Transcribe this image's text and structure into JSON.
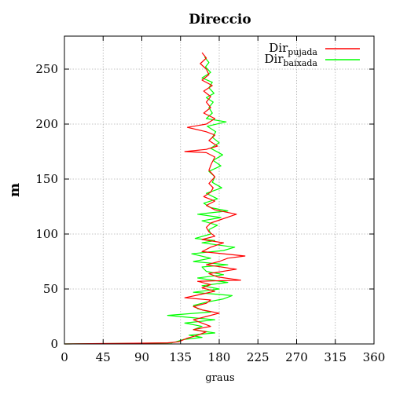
{
  "chart_data": {
    "type": "line",
    "title": "Direccio",
    "xlabel": "graus",
    "ylabel": "m",
    "xlim": [
      0,
      360
    ],
    "ylim": [
      0,
      280
    ],
    "x_ticks": [
      0,
      45,
      90,
      135,
      180,
      225,
      270,
      315,
      360
    ],
    "y_ticks": [
      0,
      50,
      100,
      150,
      200,
      250
    ],
    "grid": true,
    "legend_position": "top-right",
    "series": [
      {
        "name": "Dir",
        "name_sub": "pujada",
        "color": "#ff0000",
        "points": [
          [
            0,
            0
          ],
          [
            60,
            0.5
          ],
          [
            120,
            1
          ],
          [
            133,
            2
          ],
          [
            142,
            5
          ],
          [
            155,
            8
          ],
          [
            165,
            11
          ],
          [
            150,
            13
          ],
          [
            170,
            16
          ],
          [
            160,
            19
          ],
          [
            150,
            22
          ],
          [
            165,
            25
          ],
          [
            180,
            28
          ],
          [
            160,
            31
          ],
          [
            150,
            34
          ],
          [
            165,
            37
          ],
          [
            170,
            40
          ],
          [
            140,
            42
          ],
          [
            158,
            45
          ],
          [
            175,
            48
          ],
          [
            160,
            51
          ],
          [
            170,
            54
          ],
          [
            155,
            57
          ],
          [
            205,
            58
          ],
          [
            178,
            61
          ],
          [
            168,
            64
          ],
          [
            200,
            68
          ],
          [
            165,
            72
          ],
          [
            180,
            75
          ],
          [
            190,
            78
          ],
          [
            210,
            80
          ],
          [
            160,
            84
          ],
          [
            170,
            88
          ],
          [
            185,
            92
          ],
          [
            160,
            95
          ],
          [
            175,
            98
          ],
          [
            168,
            102
          ],
          [
            165,
            106
          ],
          [
            170,
            110
          ],
          [
            200,
            118
          ],
          [
            175,
            122
          ],
          [
            165,
            126
          ],
          [
            175,
            130
          ],
          [
            162,
            134
          ],
          [
            170,
            138
          ],
          [
            173,
            142
          ],
          [
            168,
            146
          ],
          [
            175,
            152
          ],
          [
            168,
            158
          ],
          [
            171,
            164
          ],
          [
            175,
            170
          ],
          [
            165,
            174
          ],
          [
            140,
            175
          ],
          [
            165,
            177
          ],
          [
            178,
            180
          ],
          [
            168,
            185
          ],
          [
            175,
            190
          ],
          [
            165,
            193
          ],
          [
            143,
            197
          ],
          [
            165,
            200
          ],
          [
            175,
            205
          ],
          [
            162,
            210
          ],
          [
            170,
            215
          ],
          [
            165,
            220
          ],
          [
            170,
            225
          ],
          [
            162,
            230
          ],
          [
            172,
            235
          ],
          [
            160,
            240
          ],
          [
            168,
            245
          ],
          [
            165,
            250
          ],
          [
            158,
            255
          ],
          [
            165,
            260
          ],
          [
            160,
            265
          ]
        ]
      },
      {
        "name": "Dir",
        "name_sub": "baixada",
        "color": "#00ff00",
        "points": [
          [
            0,
            0
          ],
          [
            70,
            0.5
          ],
          [
            125,
            1
          ],
          [
            130,
            2
          ],
          [
            138,
            4
          ],
          [
            160,
            6
          ],
          [
            145,
            8
          ],
          [
            175,
            10
          ],
          [
            150,
            13
          ],
          [
            160,
            16
          ],
          [
            140,
            19
          ],
          [
            175,
            22
          ],
          [
            120,
            26
          ],
          [
            170,
            29
          ],
          [
            155,
            32
          ],
          [
            150,
            35
          ],
          [
            165,
            38
          ],
          [
            185,
            41
          ],
          [
            195,
            44
          ],
          [
            150,
            47
          ],
          [
            180,
            50
          ],
          [
            160,
            53
          ],
          [
            190,
            56
          ],
          [
            155,
            60
          ],
          [
            185,
            63
          ],
          [
            165,
            66
          ],
          [
            160,
            70
          ],
          [
            190,
            72
          ],
          [
            150,
            75
          ],
          [
            170,
            78
          ],
          [
            148,
            82
          ],
          [
            185,
            85
          ],
          [
            198,
            88
          ],
          [
            160,
            92
          ],
          [
            175,
            94
          ],
          [
            152,
            96
          ],
          [
            170,
            100
          ],
          [
            168,
            104
          ],
          [
            178,
            108
          ],
          [
            160,
            112
          ],
          [
            182,
            115
          ],
          [
            155,
            118
          ],
          [
            190,
            121
          ],
          [
            170,
            124
          ],
          [
            162,
            128
          ],
          [
            178,
            132
          ],
          [
            165,
            137
          ],
          [
            183,
            142
          ],
          [
            172,
            147
          ],
          [
            175,
            152
          ],
          [
            168,
            157
          ],
          [
            182,
            162
          ],
          [
            173,
            167
          ],
          [
            184,
            172
          ],
          [
            170,
            178
          ],
          [
            180,
            183
          ],
          [
            172,
            188
          ],
          [
            176,
            193
          ],
          [
            166,
            198
          ],
          [
            188,
            202
          ],
          [
            165,
            205
          ],
          [
            172,
            210
          ],
          [
            168,
            215
          ],
          [
            173,
            220
          ],
          [
            165,
            224
          ],
          [
            174,
            228
          ],
          [
            168,
            233
          ],
          [
            172,
            238
          ],
          [
            160,
            242
          ],
          [
            170,
            247
          ],
          [
            164,
            252
          ],
          [
            168,
            256
          ],
          [
            163,
            261
          ]
        ]
      }
    ]
  }
}
